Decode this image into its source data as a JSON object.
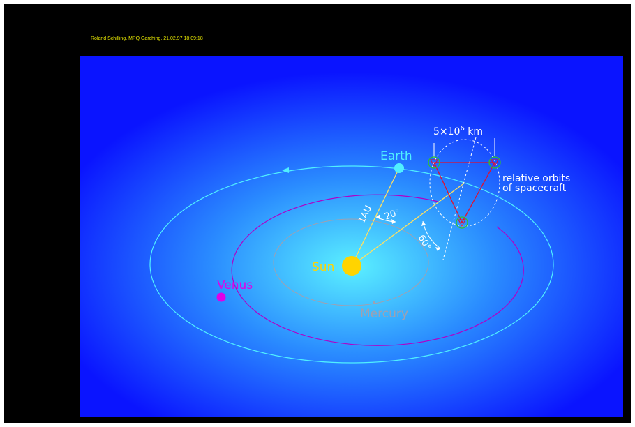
{
  "credit": "Roland Schilling,  MPQ Garching,  21.02.97  18:09:18",
  "labels": {
    "earth": "Earth",
    "venus": "Venus",
    "mercury": "Mercury",
    "sun": "Sun",
    "distance": "1AU",
    "angle_20": "20°",
    "angle_60": "60°",
    "separation": "5×10",
    "separation_exp": "6",
    "separation_unit": " km",
    "relative_orbits_line1": "relative orbits",
    "relative_orbits_line2": "of spacecraft"
  },
  "colors": {
    "background_outer": "#0a14ff",
    "background_inner": "#5af0ff",
    "frame": "#000000",
    "credit_text": "#e6e600",
    "sun": "#ffd400",
    "earth": "#50f0ff",
    "earth_orbit": "#50f0ff",
    "venus": "#e000e8",
    "venus_orbit": "#b000c8",
    "mercury": "#a0a0b0",
    "mercury_orbit": "#a0a0b0",
    "guide_lines": "#ffe060",
    "triangle": "#e01030",
    "spacecraft": "#30c030",
    "annotation": "#ffffff"
  },
  "icons": {
    "spacecraft": "spacecraft-icon",
    "orbit_direction": "orbit-direction-arrow-icon"
  }
}
